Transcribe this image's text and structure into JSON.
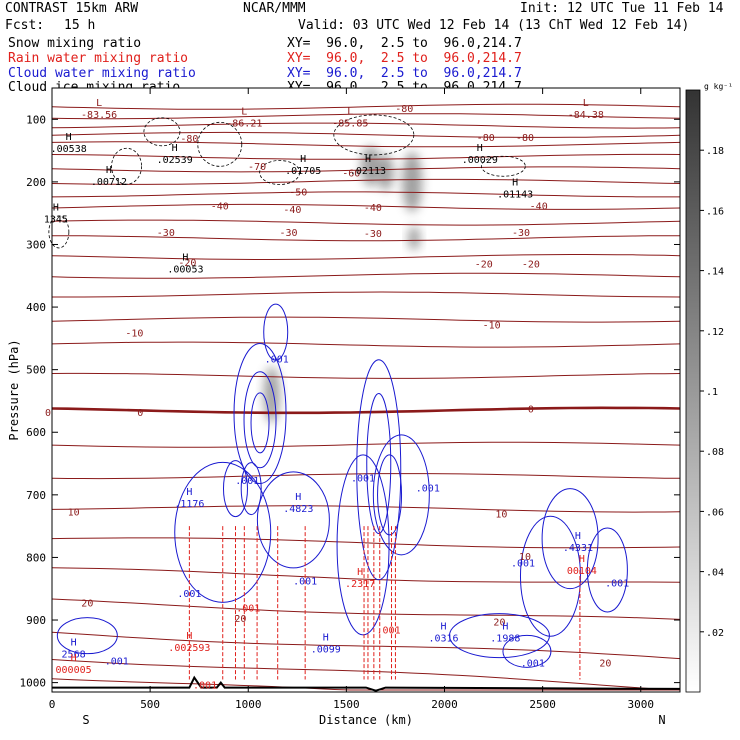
{
  "header": {
    "model": "CONTRAST 15km ARW",
    "center": "NCAR/MMM",
    "init": "Init: 12 UTC Tue 11 Feb 14",
    "fcst_label": "Fcst:",
    "fcst_value": "15 h",
    "valid": "Valid: 03 UTC Wed 12 Feb 14 (13 ChT Wed 12 Feb 14)"
  },
  "fields": [
    {
      "name": "Snow mixing ratio",
      "xy": "XY=  96.0,  2.5 to  96.0,214.7",
      "color": "#000000"
    },
    {
      "name": "Rain water mixing ratio",
      "xy": "XY=  96.0,  2.5 to  96.0,214.7",
      "color": "#e0201c"
    },
    {
      "name": "Cloud water mixing ratio",
      "xy": "XY=  96.0,  2.5 to  96.0,214.7",
      "color": "#1a1ad0"
    },
    {
      "name": "Cloud ice mixing ratio",
      "xy": "XY=  96.0,  2.5 to  96.0,214.7",
      "color": "#000000"
    }
  ],
  "colors": {
    "temperature": "#8b1a1a",
    "rain": "#e0201c",
    "cloud_water": "#1a1ad0",
    "terrain": "#000000"
  },
  "chart_data": {
    "type": "cross-section",
    "xlabel": "Distance (km)",
    "ylabel": "Pressure (hPa)",
    "xlim": [
      0,
      3200
    ],
    "ylim": [
      50,
      1015
    ],
    "x_ticks": [
      "0",
      "500",
      "1000",
      "1500",
      "2000",
      "2500",
      "3000"
    ],
    "x_tick_values": [
      0,
      500,
      1000,
      1500,
      2000,
      2500,
      3000
    ],
    "y_ticks": [
      "100",
      "200",
      "300",
      "400",
      "500",
      "600",
      "700",
      "800",
      "900",
      "1000"
    ],
    "y_tick_values": [
      100,
      200,
      300,
      400,
      500,
      600,
      700,
      800,
      900,
      1000
    ],
    "x_end_labels": {
      "left": "S",
      "right": "N"
    },
    "colorbar": {
      "unit": "g kg⁻¹",
      "ticks": [
        ".02",
        ".04",
        ".06",
        ".08",
        ".1",
        ".12",
        ".14",
        ".16",
        ".18"
      ],
      "tick_values": [
        0.02,
        0.04,
        0.06,
        0.08,
        0.1,
        0.12,
        0.14,
        0.16,
        0.18
      ],
      "max": 0.2
    },
    "isotherm_labels": [
      {
        "text": "-80",
        "x": 700,
        "p": 130
      },
      {
        "text": "-80",
        "x": 1795,
        "p": 82
      },
      {
        "text": "-80",
        "x": 2210,
        "p": 128
      },
      {
        "text": "-80",
        "x": 2410,
        "p": 128
      },
      {
        "text": "-70",
        "x": 1045,
        "p": 175
      },
      {
        "text": "-60",
        "x": 1525,
        "p": 185
      },
      {
        "text": "-50",
        "x": 1255,
        "p": 215
      },
      {
        "text": "-40",
        "x": 855,
        "p": 238
      },
      {
        "text": "-40",
        "x": 1225,
        "p": 243
      },
      {
        "text": "-40",
        "x": 1635,
        "p": 240
      },
      {
        "text": "-40",
        "x": 2480,
        "p": 238
      },
      {
        "text": "-30",
        "x": 580,
        "p": 280
      },
      {
        "text": "-30",
        "x": 1205,
        "p": 280
      },
      {
        "text": "-30",
        "x": 1635,
        "p": 282
      },
      {
        "text": "-30",
        "x": 2390,
        "p": 280
      },
      {
        "text": "-20",
        "x": 690,
        "p": 328
      },
      {
        "text": "-20",
        "x": 2200,
        "p": 330
      },
      {
        "text": "-20",
        "x": 2440,
        "p": 330
      },
      {
        "text": "-10",
        "x": 420,
        "p": 441
      },
      {
        "text": "-10",
        "x": 2240,
        "p": 428
      },
      {
        "text": "0",
        "x": -20,
        "p": 568
      },
      {
        "text": "0",
        "x": 450,
        "p": 568
      },
      {
        "text": "0",
        "x": 2440,
        "p": 562
      },
      {
        "text": "10",
        "x": 110,
        "p": 727
      },
      {
        "text": "10",
        "x": 2410,
        "p": 798
      },
      {
        "text": "10",
        "x": 2290,
        "p": 730
      },
      {
        "text": "20",
        "x": 180,
        "p": 872
      },
      {
        "text": "20",
        "x": 960,
        "p": 897
      },
      {
        "text": "20",
        "x": 2280,
        "p": 902
      },
      {
        "text": "20",
        "x": 2820,
        "p": 968
      }
    ],
    "extrema_labels": [
      {
        "kind": "L",
        "value": "-83.56",
        "x": 240,
        "p": 88,
        "color": "#8b1a1a"
      },
      {
        "kind": "L",
        "value": "-86.21",
        "x": 980,
        "p": 102,
        "color": "#8b1a1a"
      },
      {
        "kind": "L",
        "value": "-85.85",
        "x": 1520,
        "p": 102,
        "color": "#8b1a1a"
      },
      {
        "kind": "L",
        "value": "-84.38",
        "x": 2720,
        "p": 88,
        "color": "#8b1a1a"
      },
      {
        "kind": "H",
        "value": ".00538",
        "x": 85,
        "p": 143,
        "color": "#000000"
      },
      {
        "kind": "H",
        "value": ".02539",
        "x": 625,
        "p": 160,
        "color": "#000000"
      },
      {
        "kind": "H",
        "value": ".01705",
        "x": 1280,
        "p": 178,
        "color": "#000000"
      },
      {
        "kind": "H",
        "value": ".02113",
        "x": 1610,
        "p": 178,
        "color": "#000000"
      },
      {
        "kind": "H",
        "value": ".00029",
        "x": 2180,
        "p": 160,
        "color": "#000000"
      },
      {
        "kind": "H",
        "value": ".00712",
        "x": 290,
        "p": 195,
        "color": "#000000"
      },
      {
        "kind": "H",
        "value": ".01143",
        "x": 2360,
        "p": 215,
        "color": "#000000"
      },
      {
        "kind": "H",
        "value": "1345",
        "x": 20,
        "p": 255,
        "color": "#000000"
      },
      {
        "kind": "H",
        "value": ".00053",
        "x": 680,
        "p": 335,
        "color": "#000000"
      },
      {
        "kind": "H",
        "value": ".1176",
        "x": 700,
        "p": 710,
        "color": "#1a1ad0"
      },
      {
        "kind": "H",
        "value": ".4823",
        "x": 1255,
        "p": 718,
        "color": "#1a1ad0"
      },
      {
        "kind": "H",
        "value": ".4331",
        "x": 2680,
        "p": 780,
        "color": "#1a1ad0"
      },
      {
        "kind": "H",
        "value": ".0316",
        "x": 1995,
        "p": 925,
        "color": "#1a1ad0"
      },
      {
        "kind": "H",
        "value": ".1988",
        "x": 2310,
        "p": 925,
        "color": "#1a1ad0"
      },
      {
        "kind": "H",
        "value": ".0099",
        "x": 1395,
        "p": 942,
        "color": "#1a1ad0"
      },
      {
        "kind": "H",
        "value": "2568",
        "x": 110,
        "p": 950,
        "color": "#1a1ad0"
      },
      {
        "kind": "H",
        "value": ".2317",
        "x": 1570,
        "p": 838,
        "color": "#e0201c"
      },
      {
        "kind": "H",
        "value": ".002593",
        "x": 700,
        "p": 940,
        "color": "#e0201c"
      },
      {
        "kind": "H",
        "value": "000005",
        "x": 110,
        "p": 975,
        "color": "#e0201c"
      },
      {
        "kind": "H",
        "value": "00104",
        "x": 2700,
        "p": 817,
        "color": "#e0201c"
      }
    ],
    "contour_values": [
      {
        "text": ".001",
        "x": 1145,
        "p": 482,
        "color": "#1a1ad0"
      },
      {
        "text": ".001",
        "x": 995,
        "p": 676,
        "color": "#1a1ad0"
      },
      {
        "text": ".001",
        "x": 1585,
        "p": 672,
        "color": "#1a1ad0"
      },
      {
        "text": ".001",
        "x": 1915,
        "p": 688,
        "color": "#1a1ad0"
      },
      {
        "text": ".001",
        "x": 700,
        "p": 857,
        "color": "#1a1ad0"
      },
      {
        "text": ".001",
        "x": 1290,
        "p": 837,
        "color": "#1a1ad0"
      },
      {
        "text": ".001",
        "x": 2400,
        "p": 808,
        "color": "#1a1ad0"
      },
      {
        "text": ".001",
        "x": 2880,
        "p": 840,
        "color": "#1a1ad0"
      },
      {
        "text": ".001",
        "x": 330,
        "p": 965,
        "color": "#1a1ad0"
      },
      {
        "text": ".001",
        "x": 2450,
        "p": 968,
        "color": "#1a1ad0"
      },
      {
        "text": ".001",
        "x": 1000,
        "p": 880,
        "color": "#e0201c"
      },
      {
        "text": ".001",
        "x": 1715,
        "p": 915,
        "color": "#e0201c"
      },
      {
        "text": ".001",
        "x": 780,
        "p": 1003,
        "color": "#e0201c"
      }
    ],
    "bold_freezing_level_p": 565,
    "surface_p": 1005
  }
}
